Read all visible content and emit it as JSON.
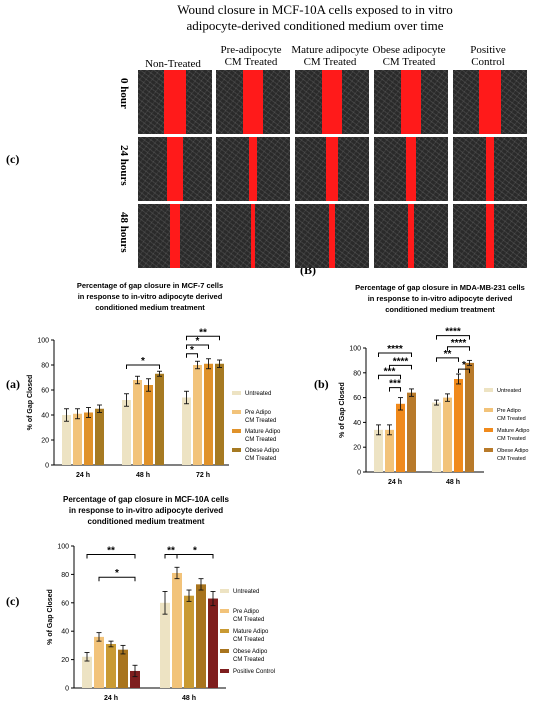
{
  "figure": {
    "title_line1": "Wound closure in MCF-10A cells exposed to in vitro",
    "title_line2": "adipocyte-derived conditioned medium over time",
    "panel_c_top": "(c)",
    "panel_b_marker": "(B)",
    "panel_a": "(a)",
    "panel_b": "(b)",
    "panel_c_bottom": "(c)",
    "columns": [
      {
        "line1": "Non-Treated",
        "line2": ""
      },
      {
        "line1": "Pre-adipocyte",
        "line2": "CM Treated"
      },
      {
        "line1": "Mature adipocyte",
        "line2": "CM Treated"
      },
      {
        "line1": "Obese adipocyte",
        "line2": "CM Treated"
      },
      {
        "line1": "Positive",
        "line2": "Control"
      }
    ],
    "rows": [
      "0 hour",
      "24 hours",
      "48 hours"
    ],
    "gap_fraction": [
      [
        0.3,
        0.28,
        0.27,
        0.26,
        0.3
      ],
      [
        0.22,
        0.12,
        0.16,
        0.14,
        0.1
      ],
      [
        0.14,
        0.05,
        0.08,
        0.07,
        0.12
      ]
    ]
  },
  "colors": {
    "untreated": "#ede3c3",
    "pre": "#f2c37a",
    "mature": "#e0922a",
    "obese": "#a67a22",
    "mature_b": "#f08a1c",
    "obese_b": "#b87a2a",
    "mature_c": "#c99a33",
    "obese_c": "#a8741e",
    "positive": "#7e1e1e",
    "wound_red": "#ff1a1a"
  },
  "chart_data": [
    {
      "id": "a",
      "type": "bar",
      "title": "Percentage of gap closure in MCF-7 cells in response to in-vitro adipocyte derived conditioned medium treatment",
      "title_lines": [
        "Percentage of gap closure in MCF-7 cells",
        "in response to in-vitro adipocyte derived",
        "conditioned medium treatment"
      ],
      "ylabel": "% of Gap Closed",
      "xlabel": "",
      "ylim": [
        0,
        100
      ],
      "yticks": [
        0,
        20,
        40,
        60,
        80,
        100
      ],
      "categories": [
        "24 h",
        "48 h",
        "72 h"
      ],
      "series": [
        {
          "name": "Untreated",
          "color_key": "untreated",
          "values": [
            40,
            52,
            54
          ],
          "err": [
            5,
            5,
            5
          ]
        },
        {
          "name": "Pre Adipo CM Treated",
          "color_key": "pre",
          "values": [
            41,
            68,
            80
          ],
          "err": [
            4,
            3,
            3
          ]
        },
        {
          "name": "Mature Adipo CM Treated",
          "color_key": "mature",
          "values": [
            42,
            64,
            81
          ],
          "err": [
            4,
            5,
            4
          ]
        },
        {
          "name": "Obese Adipo CM Treated",
          "color_key": "obese",
          "values": [
            45,
            73,
            81
          ],
          "err": [
            3,
            2,
            3
          ]
        }
      ],
      "legend": {
        "placement": "right",
        "entries": [
          [
            "Untreated"
          ],
          [
            "Pre Adipo",
            "CM Treated"
          ],
          [
            "Mature Adipo",
            "CM Treated"
          ],
          [
            "Obese Adipo",
            "CM Treated"
          ]
        ]
      },
      "brackets": [
        {
          "from": [
            1,
            0
          ],
          "to": [
            1,
            3
          ],
          "y": 80,
          "label": "*"
        },
        {
          "from": [
            2,
            0
          ],
          "to": [
            2,
            1
          ],
          "y": 89,
          "label": "*"
        },
        {
          "from": [
            2,
            0
          ],
          "to": [
            2,
            2
          ],
          "y": 96,
          "label": "*"
        },
        {
          "from": [
            2,
            0
          ],
          "to": [
            2,
            3
          ],
          "y": 103,
          "label": "**"
        }
      ]
    },
    {
      "id": "b",
      "type": "bar",
      "title": "Percentage of gap closure in MDA-MB-231 cells in response to in-vitro adipocyte derived conditioned medium treatment",
      "title_lines": [
        "Percentage of gap closure in MDA-MB-231 cells",
        "in response to in-vitro adipocyte derived",
        "conditioned medium treatment"
      ],
      "ylabel": "% of Gap Closed",
      "xlabel": "",
      "ylim": [
        0,
        100
      ],
      "yticks": [
        0,
        20,
        40,
        60,
        80,
        100
      ],
      "categories": [
        "24 h",
        "48 h"
      ],
      "series": [
        {
          "name": "Untreated",
          "color_key": "untreated",
          "values": [
            34,
            56
          ],
          "err": [
            4,
            2
          ]
        },
        {
          "name": "Pre Adipo CM Treated",
          "color_key": "pre",
          "values": [
            34,
            60
          ],
          "err": [
            4,
            3
          ]
        },
        {
          "name": "Mature Adipo CM Treated",
          "color_key": "mature_b",
          "values": [
            55,
            75
          ],
          "err": [
            5,
            4
          ]
        },
        {
          "name": "Obese Adipo CM Treated",
          "color_key": "obese_b",
          "values": [
            64,
            88
          ],
          "err": [
            3,
            2
          ]
        }
      ],
      "legend": {
        "placement": "right",
        "entries": [
          [
            "Untreated"
          ],
          [
            "Pre Adipo",
            "CM Treated"
          ],
          [
            "Mature Adipo",
            "CM Treated"
          ],
          [
            "Obese Adipo",
            "CM Treated"
          ]
        ]
      },
      "brackets": [
        {
          "from": [
            0,
            1
          ],
          "to": [
            0,
            2
          ],
          "y": 68,
          "label": "***"
        },
        {
          "from": [
            0,
            0
          ],
          "to": [
            0,
            2
          ],
          "y": 78,
          "label": "***"
        },
        {
          "from": [
            0,
            1
          ],
          "to": [
            0,
            3
          ],
          "y": 86,
          "label": "****"
        },
        {
          "from": [
            0,
            0
          ],
          "to": [
            0,
            3
          ],
          "y": 96,
          "label": "****"
        },
        {
          "from": [
            1,
            2
          ],
          "to": [
            1,
            3
          ],
          "y": 83,
          "label": "*"
        },
        {
          "from": [
            1,
            0
          ],
          "to": [
            1,
            2
          ],
          "y": 92,
          "label": "**"
        },
        {
          "from": [
            1,
            1
          ],
          "to": [
            1,
            3
          ],
          "y": 101,
          "label": "****"
        },
        {
          "from": [
            1,
            0
          ],
          "to": [
            1,
            3
          ],
          "y": 110,
          "label": "****"
        }
      ]
    },
    {
      "id": "c",
      "type": "bar",
      "title": "Percentage of gap closure in MCF-10A cells in response to in-vitro adipocyte derived conditioned medium treatment",
      "title_lines": [
        "Percentage of gap closure in MCF-10A cells",
        "in response to in-vitro adipocyte derived",
        "conditioned medium treatment"
      ],
      "ylabel": "% of Gap Closed",
      "xlabel": "",
      "ylim": [
        0,
        100
      ],
      "yticks": [
        0,
        20,
        40,
        60,
        80,
        100
      ],
      "categories": [
        "24 h",
        "48 h"
      ],
      "series": [
        {
          "name": "Untreated",
          "color_key": "untreated",
          "values": [
            22,
            60
          ],
          "err": [
            3,
            8
          ]
        },
        {
          "name": "Pre Adipo CM Treated",
          "color_key": "pre",
          "values": [
            36,
            81
          ],
          "err": [
            3,
            4
          ]
        },
        {
          "name": "Mature Adipo CM Treated",
          "color_key": "mature_c",
          "values": [
            31,
            65
          ],
          "err": [
            2,
            4
          ]
        },
        {
          "name": "Obese Adipo CM Treated",
          "color_key": "obese_c",
          "values": [
            27,
            73
          ],
          "err": [
            3,
            4
          ]
        },
        {
          "name": "Positive Control",
          "color_key": "positive",
          "values": [
            12,
            63
          ],
          "err": [
            4,
            5
          ]
        }
      ],
      "legend": {
        "placement": "right",
        "entries": [
          [
            "Untreated"
          ],
          [
            "Pre Adipo",
            "CM Treated"
          ],
          [
            "Mature Adipo",
            "CM Treated"
          ],
          [
            "Obese Adipo",
            "CM Treated"
          ],
          [
            "Positive Control"
          ]
        ]
      },
      "brackets": [
        {
          "from": [
            0,
            0
          ],
          "to": [
            0,
            4
          ],
          "y": 94,
          "label": "**"
        },
        {
          "from": [
            0,
            1
          ],
          "to": [
            0,
            4
          ],
          "y": 78,
          "label": "*"
        },
        {
          "from": [
            1,
            0
          ],
          "to": [
            1,
            1
          ],
          "y": 94,
          "label": "**"
        },
        {
          "from": [
            1,
            1
          ],
          "to": [
            1,
            4
          ],
          "y": 94,
          "label": "*"
        }
      ]
    }
  ]
}
